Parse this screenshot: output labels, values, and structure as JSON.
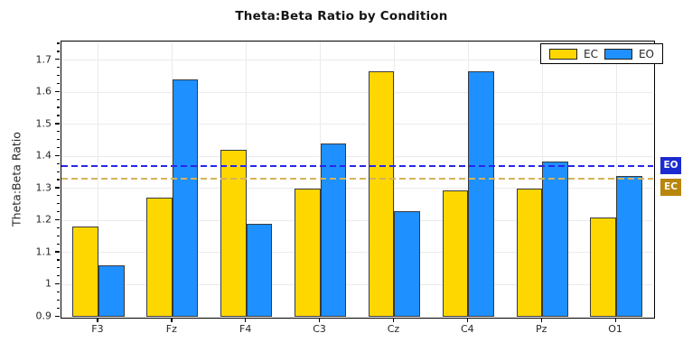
{
  "title": "Theta:Beta Ratio by Condition",
  "chart_data": {
    "type": "bar",
    "title": "Theta:Beta Ratio by Condition",
    "xlabel": "",
    "ylabel": "Theta:Beta Ratio",
    "categories": [
      "F3",
      "Fz",
      "F4",
      "C3",
      "Cz",
      "C4",
      "Pz",
      "O1"
    ],
    "series": [
      {
        "name": "EC",
        "color": "#FFD700",
        "values": [
          1.18,
          1.27,
          1.42,
          1.3,
          1.665,
          1.295,
          1.3,
          1.21
        ]
      },
      {
        "name": "EO",
        "color": "#1E90FF",
        "values": [
          1.06,
          1.64,
          1.19,
          1.44,
          1.23,
          1.665,
          1.385,
          1.34
        ]
      }
    ],
    "reference_lines": [
      {
        "label": "EO",
        "value": 1.369,
        "line_color": "#2727e8",
        "badge_color": "#1b2bd0"
      },
      {
        "label": "EC",
        "value": 1.331,
        "line_color": "#d4b35a",
        "badge_color": "#b8860b"
      }
    ],
    "ylim": [
      0.9,
      1.758
    ],
    "yticks": [
      "0.9",
      "1",
      "1.1",
      "1.2",
      "1.3",
      "1.4",
      "1.5",
      "1.6",
      "1.7"
    ],
    "ytick_values": [
      0.9,
      1.0,
      1.1,
      1.2,
      1.3,
      1.4,
      1.5,
      1.6,
      1.7
    ],
    "minor_tick_step": 0.025,
    "grid": true,
    "legend": {
      "position": "upper right"
    }
  }
}
